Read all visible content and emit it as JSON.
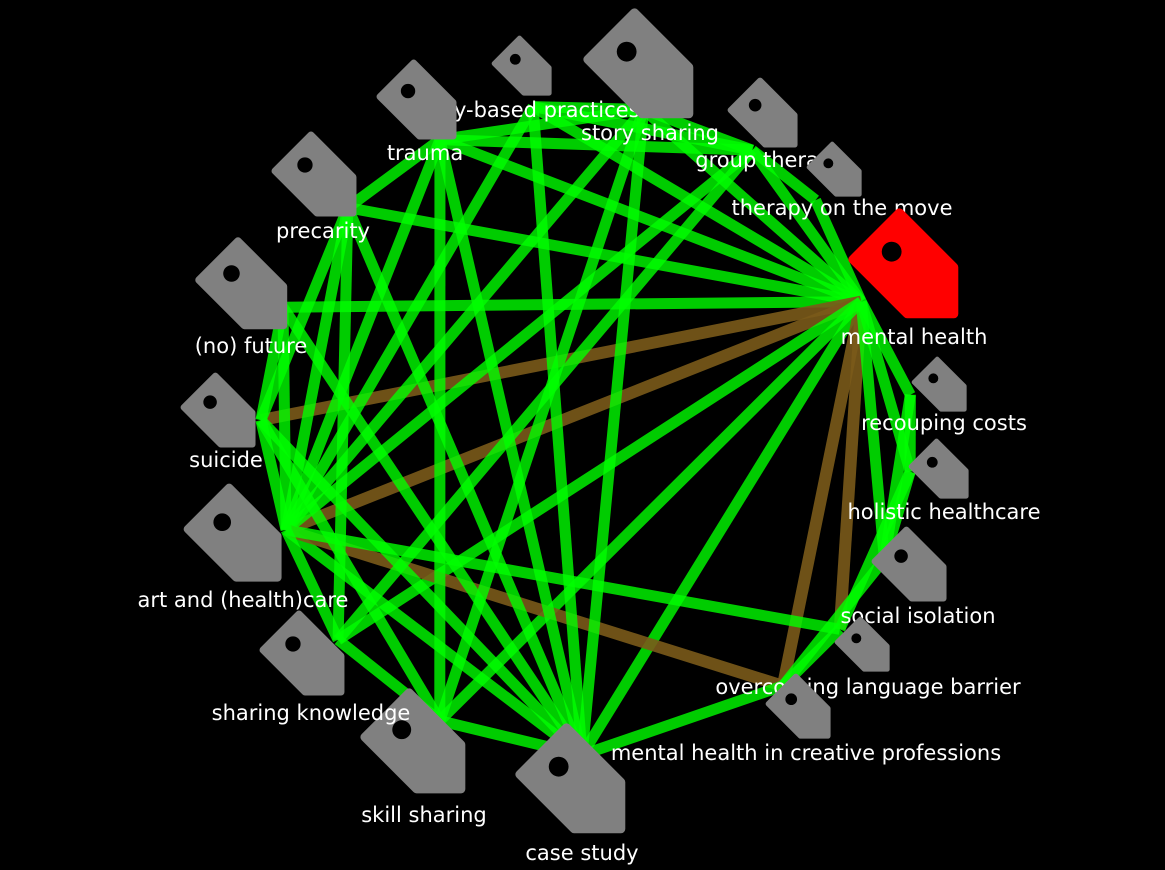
{
  "colors": {
    "background": "#000000",
    "edge": "#00ff00",
    "edge_alt": "#7a5a1a",
    "tag": "#808080",
    "tag_selected": "#ff0000",
    "label": "#ffffff"
  },
  "nodes": [
    {
      "id": "body-based-practices",
      "label": "body-based practices",
      "selected": false
    },
    {
      "id": "story-sharing",
      "label": "story sharing",
      "selected": false
    },
    {
      "id": "group-therapy",
      "label": "group therapy",
      "selected": false
    },
    {
      "id": "therapy-on-the-move",
      "label": "therapy on the move",
      "selected": false
    },
    {
      "id": "mental-health",
      "label": "mental health",
      "selected": true
    },
    {
      "id": "recouping-costs",
      "label": "recouping costs",
      "selected": false
    },
    {
      "id": "holistic-healthcare",
      "label": "holistic healthcare",
      "selected": false
    },
    {
      "id": "social-isolation",
      "label": "social isolation",
      "selected": false
    },
    {
      "id": "overcoming-language-barrier",
      "label": "overcoming language barrier",
      "selected": false
    },
    {
      "id": "mental-health-in-creative-professions",
      "label": "mental health in creative professions",
      "selected": false
    },
    {
      "id": "case-study",
      "label": "case study",
      "selected": false
    },
    {
      "id": "skill-sharing",
      "label": "skill sharing",
      "selected": false
    },
    {
      "id": "sharing-knowledge",
      "label": "sharing knowledge",
      "selected": false
    },
    {
      "id": "art-and-health-care",
      "label": "art and (health)care",
      "selected": false
    },
    {
      "id": "suicide",
      "label": "suicide",
      "selected": false
    },
    {
      "id": "no-future",
      "label": "(no) future",
      "selected": false
    },
    {
      "id": "precarity",
      "label": "precarity",
      "selected": false
    },
    {
      "id": "trauma",
      "label": "trauma",
      "selected": false
    }
  ],
  "edges": [
    [
      "mental-health",
      "body-based-practices",
      "edge"
    ],
    [
      "mental-health",
      "story-sharing",
      "edge"
    ],
    [
      "mental-health",
      "group-therapy",
      "edge"
    ],
    [
      "mental-health",
      "therapy-on-the-move",
      "edge"
    ],
    [
      "mental-health",
      "trauma",
      "edge"
    ],
    [
      "mental-health",
      "precarity",
      "edge"
    ],
    [
      "mental-health",
      "no-future",
      "edge"
    ],
    [
      "mental-health",
      "suicide",
      "edge_alt"
    ],
    [
      "mental-health",
      "art-and-health-care",
      "edge_alt"
    ],
    [
      "mental-health",
      "case-study",
      "edge"
    ],
    [
      "mental-health",
      "mental-health-in-creative-professions",
      "edge_alt"
    ],
    [
      "mental-health",
      "overcoming-language-barrier",
      "edge_alt"
    ],
    [
      "mental-health",
      "social-isolation",
      "edge"
    ],
    [
      "mental-health",
      "holistic-healthcare",
      "edge"
    ],
    [
      "mental-health",
      "recouping-costs",
      "edge"
    ],
    [
      "mental-health",
      "skill-sharing",
      "edge"
    ],
    [
      "mental-health",
      "sharing-knowledge",
      "edge"
    ],
    [
      "art-and-health-care",
      "trauma",
      "edge"
    ],
    [
      "art-and-health-care",
      "precarity",
      "edge"
    ],
    [
      "art-and-health-care",
      "body-based-practices",
      "edge"
    ],
    [
      "art-and-health-care",
      "story-sharing",
      "edge"
    ],
    [
      "art-and-health-care",
      "group-therapy",
      "edge"
    ],
    [
      "art-and-health-care",
      "case-study",
      "edge"
    ],
    [
      "art-and-health-care",
      "mental-health-in-creative-professions",
      "edge_alt"
    ],
    [
      "art-and-health-care",
      "overcoming-language-barrier",
      "edge"
    ],
    [
      "art-and-health-care",
      "suicide",
      "edge"
    ],
    [
      "art-and-health-care",
      "no-future",
      "edge"
    ],
    [
      "art-and-health-care",
      "sharing-knowledge",
      "edge"
    ],
    [
      "body-based-practices",
      "story-sharing",
      "edge"
    ],
    [
      "body-based-practices",
      "group-therapy",
      "edge"
    ],
    [
      "body-based-practices",
      "case-study",
      "edge"
    ],
    [
      "story-sharing",
      "group-therapy",
      "edge"
    ],
    [
      "story-sharing",
      "case-study",
      "edge"
    ],
    [
      "story-sharing",
      "skill-sharing",
      "edge"
    ],
    [
      "story-sharing",
      "trauma",
      "edge"
    ],
    [
      "group-therapy",
      "therapy-on-the-move",
      "edge"
    ],
    [
      "group-therapy",
      "trauma",
      "edge"
    ],
    [
      "group-therapy",
      "sharing-knowledge",
      "edge"
    ],
    [
      "trauma",
      "case-study",
      "edge"
    ],
    [
      "trauma",
      "precarity",
      "edge"
    ],
    [
      "trauma",
      "skill-sharing",
      "edge"
    ],
    [
      "precarity",
      "suicide",
      "edge"
    ],
    [
      "precarity",
      "case-study",
      "edge"
    ],
    [
      "precarity",
      "sharing-knowledge",
      "edge"
    ],
    [
      "no-future",
      "suicide",
      "edge"
    ],
    [
      "no-future",
      "case-study",
      "edge"
    ],
    [
      "suicide",
      "skill-sharing",
      "edge"
    ],
    [
      "suicide",
      "case-study",
      "edge"
    ],
    [
      "case-study",
      "skill-sharing",
      "edge"
    ],
    [
      "case-study",
      "mental-health-in-creative-professions",
      "edge"
    ],
    [
      "sharing-knowledge",
      "skill-sharing",
      "edge"
    ],
    [
      "mental-health-in-creative-professions",
      "overcoming-language-barrier",
      "edge"
    ],
    [
      "mental-health-in-creative-professions",
      "social-isolation",
      "edge"
    ],
    [
      "holistic-healthcare",
      "social-isolation",
      "edge"
    ],
    [
      "holistic-healthcare",
      "recouping-costs",
      "edge"
    ],
    [
      "holistic-healthcare",
      "overcoming-language-barrier",
      "edge"
    ],
    [
      "recouping-costs",
      "social-isolation",
      "edge"
    ]
  ]
}
